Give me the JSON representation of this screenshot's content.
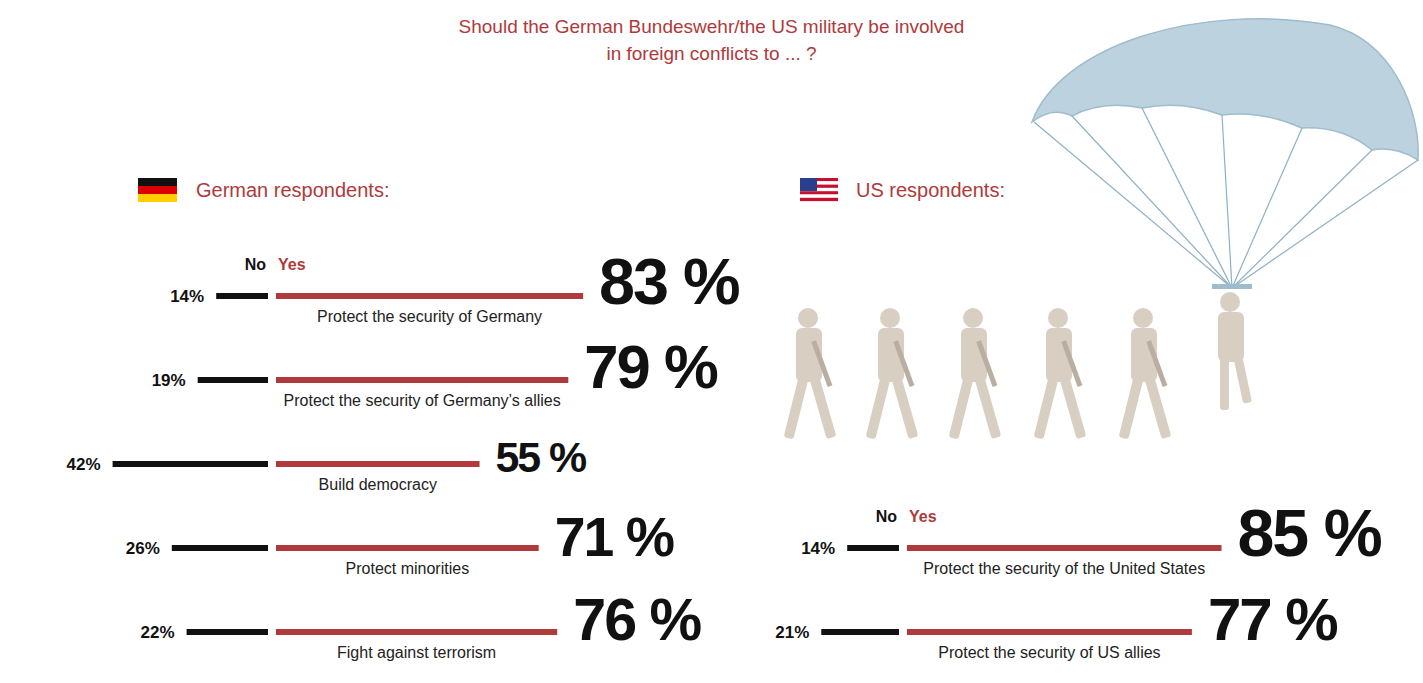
{
  "title": "Should the German Bundeswehr/the US military be involved in foreign conflicts to ... ?",
  "chart_data": [
    {
      "type": "bar",
      "orientation": "horizontal",
      "title": "German respondents:",
      "categories": [
        "Protect the security of Germany",
        "Protect the security of Germany’s allies",
        "Build democracy",
        "Protect minorities",
        "Fight against terrorism"
      ],
      "series": [
        {
          "name": "No",
          "color": "#111111",
          "values": [
            14,
            19,
            42,
            26,
            22
          ],
          "value_labels": [
            "14%",
            "19%",
            "42%",
            "26%",
            "22%"
          ]
        },
        {
          "name": "Yes",
          "color": "#b0393b",
          "values": [
            83,
            79,
            55,
            71,
            76
          ],
          "value_labels": [
            "83 %",
            "79 %",
            "55 %",
            "71 %",
            "76 %"
          ]
        }
      ],
      "data_labels": true,
      "tick_labels": false
    },
    {
      "type": "bar",
      "orientation": "horizontal",
      "title": "US respondents:",
      "categories": [
        "Protect the security of the United States",
        "Protect the security of US allies"
      ],
      "series": [
        {
          "name": "No",
          "color": "#111111",
          "values": [
            14,
            21
          ],
          "value_labels": [
            "14%",
            "21%"
          ]
        },
        {
          "name": "Yes",
          "color": "#b0393b",
          "values": [
            85,
            77
          ],
          "value_labels": [
            "85 %",
            "77 %"
          ]
        }
      ],
      "data_labels": true,
      "tick_labels": false
    }
  ]
}
